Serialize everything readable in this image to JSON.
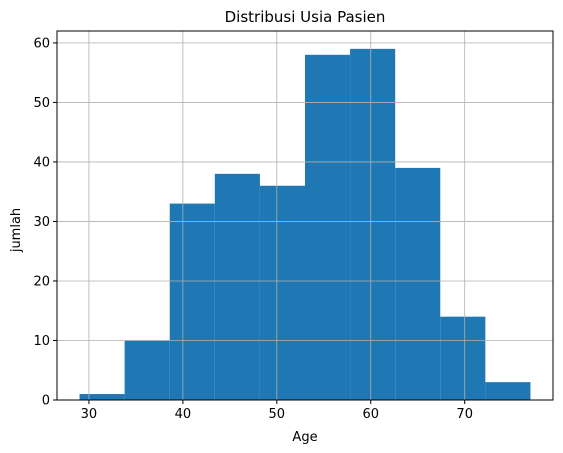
{
  "chart_data": {
    "type": "bar",
    "subtype": "histogram",
    "title": "Distribusi Usia Pasien",
    "xlabel": "Age",
    "ylabel": "jumlah",
    "bins": [
      {
        "x0": 29.0,
        "x1": 33.8,
        "value": 1
      },
      {
        "x0": 33.8,
        "x1": 38.6,
        "value": 10
      },
      {
        "x0": 38.6,
        "x1": 43.4,
        "value": 33
      },
      {
        "x0": 43.4,
        "x1": 48.2,
        "value": 38
      },
      {
        "x0": 48.2,
        "x1": 53.0,
        "value": 36
      },
      {
        "x0": 53.0,
        "x1": 57.8,
        "value": 58
      },
      {
        "x0": 57.8,
        "x1": 62.6,
        "value": 59
      },
      {
        "x0": 62.6,
        "x1": 67.4,
        "value": 39
      },
      {
        "x0": 67.4,
        "x1": 72.2,
        "value": 14
      },
      {
        "x0": 72.2,
        "x1": 77.0,
        "value": 3
      }
    ],
    "xlim": [
      26.6,
      79.4
    ],
    "ylim": [
      0,
      62
    ],
    "xticks": [
      30,
      40,
      50,
      60,
      70
    ],
    "yticks": [
      0,
      10,
      20,
      30,
      40,
      50,
      60
    ],
    "grid": true,
    "bar_color": "#1f77b4",
    "grid_color": "#b0b0b0"
  }
}
